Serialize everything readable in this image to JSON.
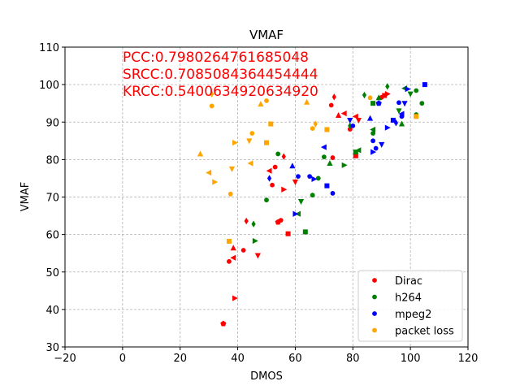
{
  "chart_data": {
    "type": "scatter",
    "title": "VMAF",
    "xlabel": "DMOS",
    "ylabel": "VMAF",
    "xlim": [
      -20,
      120
    ],
    "ylim": [
      30,
      110
    ],
    "xticks": [
      -20,
      0,
      20,
      40,
      60,
      80,
      100,
      120
    ],
    "yticks": [
      30,
      40,
      50,
      60,
      70,
      80,
      90,
      100,
      110
    ],
    "xtick_labels": [
      "−20",
      "0",
      "20",
      "40",
      "60",
      "80",
      "100",
      "120"
    ],
    "ytick_labels": [
      "30",
      "40",
      "50",
      "60",
      "70",
      "80",
      "90",
      "100",
      "110"
    ],
    "grid": true,
    "legend_position": "lower-right",
    "annotations": [
      "PCC:0.7980264761685048",
      "SRCC:0.7085084364454444",
      "KRCC:0.5400634920634920"
    ],
    "annotation_color": "#ff0000",
    "series": [
      {
        "name": "Dirac",
        "color": "#ff0000",
        "points": [
          [
            35,
            36.2,
            "p"
          ],
          [
            37,
            52.8,
            "o"
          ],
          [
            38.5,
            56.4,
            "^"
          ],
          [
            38.5,
            53.8,
            "<"
          ],
          [
            39,
            43,
            ">"
          ],
          [
            42,
            55.8,
            "o"
          ],
          [
            43,
            63.6,
            "d"
          ],
          [
            47,
            54.4,
            "v"
          ],
          [
            51,
            77,
            "<"
          ],
          [
            52,
            73.2,
            "o"
          ],
          [
            53,
            78,
            "o"
          ],
          [
            54,
            63.3,
            "p"
          ],
          [
            55,
            63.8,
            "o"
          ],
          [
            56,
            80.8,
            "d"
          ],
          [
            56,
            72,
            ">"
          ],
          [
            57.5,
            60.2,
            "s"
          ],
          [
            60,
            74,
            "v"
          ],
          [
            72.5,
            94.5,
            "o"
          ],
          [
            73.5,
            96.7,
            "d"
          ],
          [
            73,
            80.5,
            "o"
          ],
          [
            75,
            91.8,
            "^"
          ],
          [
            77,
            92.3,
            "<"
          ],
          [
            79,
            88.1,
            "o"
          ],
          [
            81,
            81,
            "s"
          ],
          [
            81,
            91.5,
            "<"
          ],
          [
            82,
            90.5,
            "v"
          ],
          [
            90,
            96.6,
            "o"
          ],
          [
            91,
            97.1,
            "s"
          ],
          [
            92,
            97.5,
            ">"
          ]
        ]
      },
      {
        "name": "h264",
        "color": "#008000",
        "points": [
          [
            45.5,
            62.8,
            "d"
          ],
          [
            46,
            58.3,
            ">"
          ],
          [
            50,
            69.2,
            "o"
          ],
          [
            54,
            81.5,
            "o"
          ],
          [
            61,
            65.5,
            "<"
          ],
          [
            62,
            68.8,
            "v"
          ],
          [
            63.5,
            60.7,
            "s"
          ],
          [
            66,
            70.5,
            "o"
          ],
          [
            68,
            75,
            "o"
          ],
          [
            70,
            80.7,
            "o"
          ],
          [
            72,
            79,
            "^"
          ],
          [
            77,
            78.5,
            ">"
          ],
          [
            79,
            89,
            "d"
          ],
          [
            81,
            82,
            "s"
          ],
          [
            82,
            82.5,
            "<"
          ],
          [
            84,
            97.2,
            "d"
          ],
          [
            87,
            95,
            "s"
          ],
          [
            87,
            88,
            "<"
          ],
          [
            87,
            87,
            "o"
          ],
          [
            89,
            96.5,
            "^"
          ],
          [
            92,
            99.5,
            "d"
          ],
          [
            96,
            93,
            "v"
          ],
          [
            97,
            89.5,
            "^"
          ],
          [
            98,
            99,
            "<"
          ],
          [
            100,
            97.5,
            "v"
          ],
          [
            102,
            92,
            "o"
          ],
          [
            102,
            98.4,
            "o"
          ],
          [
            104,
            95,
            "o"
          ]
        ]
      },
      {
        "name": "mpeg2",
        "color": "#0000ff",
        "points": [
          [
            51,
            75,
            "d"
          ],
          [
            59,
            78.3,
            "^"
          ],
          [
            60,
            65.5,
            ">"
          ],
          [
            61,
            75.5,
            "o"
          ],
          [
            65,
            75.5,
            "o"
          ],
          [
            66.5,
            74.8,
            ">"
          ],
          [
            70,
            83.3,
            "<"
          ],
          [
            71,
            73,
            "s"
          ],
          [
            73,
            71,
            "o"
          ],
          [
            79,
            90.5,
            "v"
          ],
          [
            80,
            89,
            "o"
          ],
          [
            86,
            91,
            "^"
          ],
          [
            87,
            82,
            ">"
          ],
          [
            87,
            85,
            "o"
          ],
          [
            88,
            83,
            "o"
          ],
          [
            89,
            95,
            "p"
          ],
          [
            90,
            84,
            "v"
          ],
          [
            92,
            88.5,
            ">"
          ],
          [
            94,
            90.5,
            "s"
          ],
          [
            95,
            89.8,
            "d"
          ],
          [
            96,
            95.2,
            "o"
          ],
          [
            97,
            92.2,
            "<"
          ],
          [
            97,
            91.5,
            "o"
          ],
          [
            98,
            95,
            "v"
          ],
          [
            99,
            98.8,
            ">"
          ],
          [
            105,
            100,
            "s"
          ]
        ]
      },
      {
        "name": "packet loss",
        "color": "#ffa500",
        "points": [
          [
            27,
            81.5,
            "^"
          ],
          [
            30,
            76.5,
            "<"
          ],
          [
            31,
            94.3,
            "o"
          ],
          [
            31,
            97.5,
            "d"
          ],
          [
            32,
            74,
            ">"
          ],
          [
            37,
            58.2,
            "s"
          ],
          [
            37.5,
            70.8,
            "o"
          ],
          [
            38,
            77.5,
            "v"
          ],
          [
            39,
            84.5,
            ">"
          ],
          [
            44,
            85,
            "v"
          ],
          [
            44.5,
            79,
            "<"
          ],
          [
            45,
            87,
            "o"
          ],
          [
            48,
            94.8,
            "^"
          ],
          [
            50,
            95.7,
            "o"
          ],
          [
            50,
            84.5,
            "s"
          ],
          [
            51.5,
            89.5,
            "s"
          ],
          [
            64,
            95.3,
            "^"
          ],
          [
            66,
            88.3,
            "o"
          ],
          [
            67,
            89.5,
            "d"
          ],
          [
            71,
            88,
            "s"
          ],
          [
            86,
            96.5,
            "o"
          ],
          [
            102,
            91.5,
            "s"
          ]
        ]
      }
    ]
  }
}
